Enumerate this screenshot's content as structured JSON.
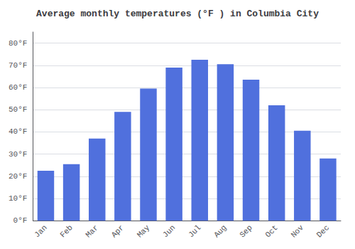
{
  "chart_data": {
    "type": "bar",
    "title": "Average monthly temperatures (°F ) in Columbia City",
    "categories": [
      "Jan",
      "Feb",
      "Mar",
      "Apr",
      "May",
      "Jun",
      "Jul",
      "Aug",
      "Sep",
      "Oct",
      "Nov",
      "Dec"
    ],
    "values": [
      22.5,
      25.5,
      37,
      49,
      59.5,
      69,
      72.5,
      70.5,
      63.5,
      52,
      40.5,
      28
    ],
    "ylim": [
      0,
      85
    ],
    "yticks": [
      {
        "value": 0,
        "label": "0°F"
      },
      {
        "value": 10,
        "label": "10°F"
      },
      {
        "value": 20,
        "label": "20°F"
      },
      {
        "value": 30,
        "label": "30°F"
      },
      {
        "value": 40,
        "label": "40°F"
      },
      {
        "value": 50,
        "label": "50°F"
      },
      {
        "value": 60,
        "label": "60°F"
      },
      {
        "value": 70,
        "label": "70°F"
      },
      {
        "value": 80,
        "label": "80°F"
      }
    ],
    "grid": true
  }
}
